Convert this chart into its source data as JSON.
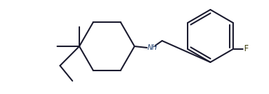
{
  "bg_color": "#ffffff",
  "bond_color": "#1a1a2e",
  "nh_color": "#1a3a6b",
  "f_color": "#3a3a0a",
  "line_width": 1.5,
  "figsize": [
    3.9,
    1.36
  ],
  "dpi": 100
}
